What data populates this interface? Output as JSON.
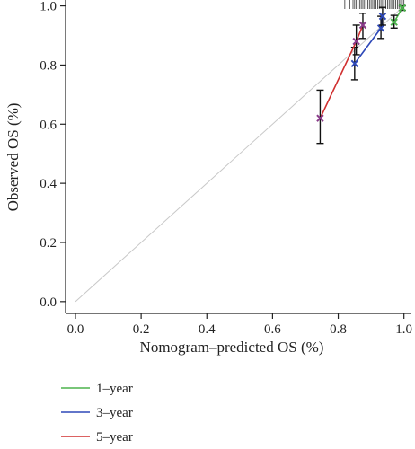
{
  "chart_data": {
    "type": "line",
    "title": "",
    "xlabel": "Nomogram–predicted OS (%)",
    "ylabel": "Observed OS (%)",
    "xlim": [
      -0.03,
      1.02
    ],
    "ylim": [
      -0.04,
      1.02
    ],
    "x_ticks": [
      0.0,
      0.2,
      0.4,
      0.6,
      0.8,
      1.0
    ],
    "y_ticks": [
      0.0,
      0.2,
      0.4,
      0.6,
      0.8,
      1.0
    ],
    "x_tick_labels": [
      "0.0",
      "0.2",
      "0.4",
      "0.6",
      "0.8",
      "1.0"
    ],
    "y_tick_labels": [
      "0.0",
      "0.2",
      "0.4",
      "0.6",
      "0.8",
      "1.0"
    ],
    "reference_line": {
      "from": [
        0,
        0
      ],
      "to": [
        1,
        1
      ],
      "color": "#c8c8c8"
    },
    "legend_position": "bottom-left",
    "grid": false,
    "series": [
      {
        "name": "1–year",
        "color": "#4db34d",
        "marker_color": "#4db34d",
        "points": [
          {
            "x": 0.97,
            "y": 0.945,
            "lo": 0.925,
            "hi": 0.968
          },
          {
            "x": 0.995,
            "y": 0.993,
            "lo": 0.985,
            "hi": 1.0
          }
        ]
      },
      {
        "name": "3–year",
        "color": "#2e49b8",
        "marker_color": "#2e49b8",
        "points": [
          {
            "x": 0.85,
            "y": 0.805,
            "lo": 0.75,
            "hi": 0.86
          },
          {
            "x": 0.93,
            "y": 0.925,
            "lo": 0.89,
            "hi": 0.965
          },
          {
            "x": 0.935,
            "y": 0.965,
            "lo": 0.935,
            "hi": 0.995
          }
        ]
      },
      {
        "name": "5–year",
        "color": "#d02f2f",
        "marker_color": "#8a3b8a",
        "points": [
          {
            "x": 0.745,
            "y": 0.62,
            "lo": 0.535,
            "hi": 0.715
          },
          {
            "x": 0.855,
            "y": 0.88,
            "lo": 0.835,
            "hi": 0.935
          },
          {
            "x": 0.875,
            "y": 0.935,
            "lo": 0.89,
            "hi": 0.975
          }
        ]
      }
    ],
    "rug_x": [
      0.82,
      0.835,
      0.845,
      0.85,
      0.855,
      0.86,
      0.865,
      0.87,
      0.875,
      0.88,
      0.885,
      0.89,
      0.895,
      0.9,
      0.905,
      0.91,
      0.915,
      0.92,
      0.925,
      0.93,
      0.935,
      0.94,
      0.945,
      0.95,
      0.955,
      0.96,
      0.965,
      0.97,
      0.975,
      0.98,
      0.985,
      0.99,
      0.995,
      1.0
    ]
  }
}
